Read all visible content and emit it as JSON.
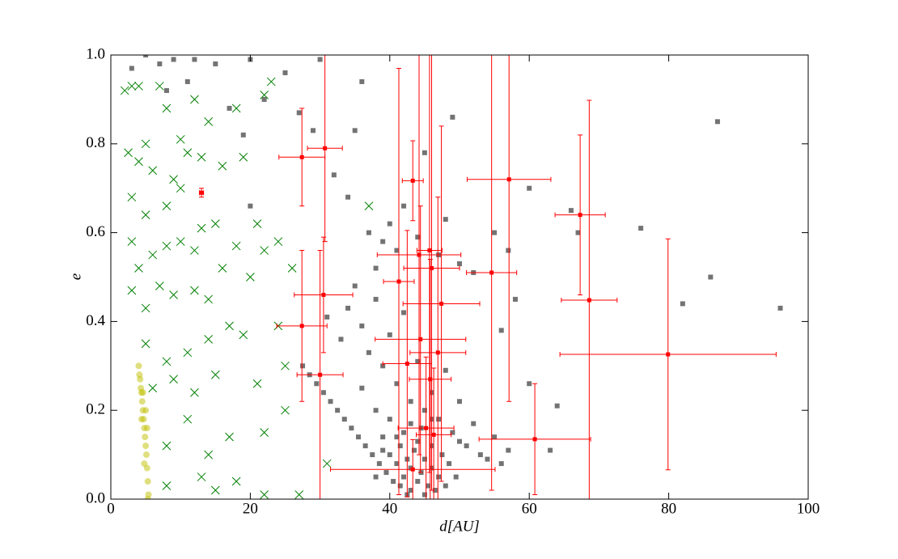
{
  "chart_data": {
    "type": "scatter",
    "x_label": "d[AU]",
    "y_label": "e",
    "xlim": [
      0,
      100
    ],
    "ylim": [
      0,
      1
    ],
    "xticks": [
      0,
      20,
      40,
      60,
      80,
      100
    ],
    "yticks": [
      {
        "value": 0,
        "label": "0.0"
      },
      0.2,
      0.4,
      0.6,
      0.8,
      {
        "value": 1,
        "label": "1.0"
      }
    ],
    "series": [
      {
        "color": "#000000",
        "marker": "s",
        "x": [
          3,
          5,
          7,
          9,
          12,
          15,
          20,
          11,
          8,
          17,
          19,
          20,
          22,
          25,
          27,
          29,
          30,
          32,
          34,
          36,
          35,
          37,
          38,
          39,
          40,
          41,
          42,
          44,
          45,
          47,
          48,
          49,
          50,
          52,
          55,
          57,
          58,
          60,
          56,
          60,
          63,
          64,
          66,
          67,
          76,
          86,
          87,
          82,
          96,
          31,
          33,
          34,
          35,
          36,
          37,
          38,
          39,
          40,
          41,
          42,
          43,
          44,
          45,
          46,
          47,
          48,
          49,
          50,
          51,
          52,
          53,
          54,
          55,
          56,
          57,
          36,
          38,
          39,
          40,
          27.5,
          28.5,
          29.5,
          30.5,
          31.5,
          32.5,
          33.5,
          34.5,
          35.5,
          36.5,
          37.5,
          38.5,
          39.5,
          40.5,
          41.5,
          42.5,
          40,
          41,
          41.5,
          42,
          42.5,
          43,
          43,
          43.5,
          44,
          44,
          44.5,
          45,
          45,
          45.5,
          46,
          46,
          46.5,
          47,
          47.5,
          48,
          42,
          43,
          44.5,
          46,
          41,
          39,
          48.5,
          49.5,
          50,
          38
        ],
        "values": [
          0.97,
          1.0,
          0.98,
          0.99,
          0.99,
          0.98,
          0.99,
          0.94,
          0.92,
          0.88,
          0.82,
          0.66,
          0.9,
          0.96,
          0.87,
          0.83,
          0.99,
          0.73,
          0.68,
          0.94,
          0.83,
          0.6,
          0.52,
          0.58,
          0.62,
          0.56,
          0.66,
          0.59,
          0.78,
          0.55,
          0.63,
          0.86,
          0.53,
          0.51,
          0.6,
          0.56,
          0.45,
          0.7,
          0.38,
          0.26,
          0.11,
          0.21,
          0.65,
          0.6,
          0.61,
          0.5,
          0.85,
          0.44,
          0.43,
          0.41,
          0.36,
          0.43,
          0.48,
          0.39,
          0.33,
          0.45,
          0.3,
          0.37,
          0.26,
          0.42,
          0.22,
          0.31,
          0.2,
          0.24,
          0.18,
          0.29,
          0.15,
          0.22,
          0.12,
          0.17,
          0.1,
          0.09,
          0.14,
          0.08,
          0.11,
          0.25,
          0.2,
          0.14,
          0.18,
          0.3,
          0.28,
          0.26,
          0.24,
          0.22,
          0.2,
          0.18,
          0.16,
          0.14,
          0.12,
          0.1,
          0.08,
          0.06,
          0.04,
          0.03,
          0.01,
          0.1,
          0.08,
          0.12,
          0.05,
          0.09,
          0.02,
          0.07,
          0.11,
          0.04,
          0.13,
          0.06,
          0.01,
          0.09,
          0.03,
          0.07,
          0.12,
          0.02,
          0.05,
          0.1,
          0.03,
          0.15,
          0.17,
          0.16,
          0.18,
          0.14,
          0.11,
          0.08,
          0.05,
          0.13,
          0.05
        ]
      },
      {
        "color": "#008000",
        "marker": "x",
        "x": [
          2,
          3,
          4,
          5,
          7,
          8,
          10,
          12,
          14,
          18,
          22,
          23,
          2.5,
          4,
          6,
          9,
          11,
          13,
          16,
          19,
          3,
          5,
          8,
          10,
          13,
          15,
          21,
          3,
          4,
          6,
          8,
          10,
          12,
          18,
          22,
          24,
          3,
          5,
          7,
          9,
          12,
          14,
          16,
          20,
          26,
          37,
          5,
          8,
          11,
          14,
          17,
          19,
          24,
          6,
          9,
          12,
          15,
          21,
          25,
          8,
          11,
          14,
          17,
          22,
          25,
          8,
          13,
          15,
          18,
          22,
          27,
          31
        ],
        "values": [
          0.92,
          0.93,
          0.93,
          0.8,
          0.93,
          0.88,
          0.81,
          0.9,
          0.85,
          0.88,
          0.91,
          0.94,
          0.78,
          0.76,
          0.74,
          0.72,
          0.78,
          0.77,
          0.75,
          0.77,
          0.68,
          0.64,
          0.66,
          0.7,
          0.61,
          0.62,
          0.62,
          0.58,
          0.52,
          0.55,
          0.57,
          0.58,
          0.56,
          0.57,
          0.56,
          0.58,
          0.47,
          0.43,
          0.48,
          0.46,
          0.47,
          0.45,
          0.52,
          0.5,
          0.52,
          0.66,
          0.35,
          0.31,
          0.33,
          0.36,
          0.39,
          0.37,
          0.39,
          0.25,
          0.27,
          0.24,
          0.28,
          0.26,
          0.3,
          0.12,
          0.18,
          0.1,
          0.14,
          0.15,
          0.2,
          0.03,
          0.05,
          0.02,
          0.04,
          0.01,
          0.01,
          0.08
        ]
      },
      {
        "color": "#bfbf00",
        "marker": "o",
        "x": [
          4,
          4.1,
          4.2,
          4.3,
          4.4,
          4.5,
          4.6,
          4.7,
          4.8,
          4.9,
          5,
          5.1,
          5.2,
          5.3,
          5.4,
          4.6,
          5.0,
          5.2,
          4.4,
          4.8,
          5.3
        ],
        "values": [
          0.3,
          0.28,
          0.27,
          0.25,
          0.24,
          0.22,
          0.2,
          0.18,
          0.16,
          0.14,
          0.12,
          0.1,
          0.07,
          0.04,
          0.01,
          0.24,
          0.2,
          0.16,
          0.18,
          0.08,
          0.0
        ]
      },
      {
        "color": "#ff0000",
        "marker": "e",
        "x": [
          13.0,
          27.4,
          30.7,
          27.4,
          30.5,
          30,
          43.3,
          41.3,
          44.2,
          45.7,
          46,
          47.4,
          44.4,
          46.9,
          42.5,
          45.8,
          45.2,
          46.3,
          43.3,
          54.6,
          57.1,
          60.8,
          67.3,
          68.6,
          79.9
        ],
        "values": [
          0.69,
          0.77,
          0.79,
          0.39,
          0.46,
          0.28,
          0.717,
          0.49,
          0.55,
          0.56,
          0.52,
          0.44,
          0.36,
          0.33,
          0.305,
          0.27,
          0.16,
          0.145,
          0.067,
          0.51,
          0.72,
          0.135,
          0.64,
          0.448,
          0.326
        ],
        "xerr": [
          0.3,
          3.3,
          2.5,
          3.6,
          4.2,
          3.3,
          1.5,
          2.2,
          6,
          1.8,
          4,
          5.5,
          6.5,
          4,
          3.5,
          3,
          4,
          2.5,
          11.8,
          3.6,
          6,
          8,
          3.6,
          4,
          15.5
        ],
        "yerr": [
          0.01,
          0.11,
          0.21,
          0.17,
          0.13,
          0.28,
          0.09,
          0.48,
          0.45,
          0.5,
          0.5,
          0.4,
          0.3,
          0.35,
          0.3,
          0.27,
          0.16,
          0.15,
          0.067,
          0.49,
          0.5,
          0.125,
          0.18,
          0.45,
          0.26
        ]
      }
    ]
  }
}
